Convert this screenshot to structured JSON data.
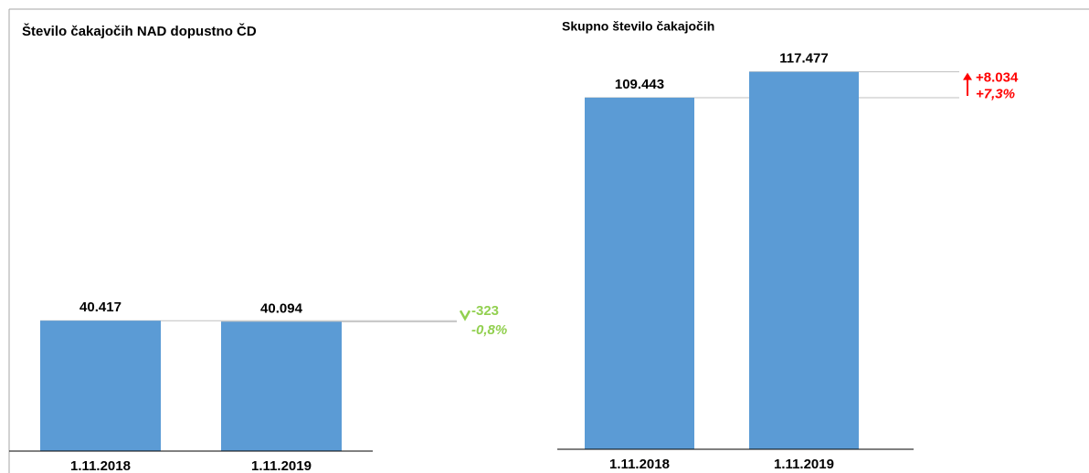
{
  "chart_data": [
    {
      "type": "bar",
      "title": "Število čakajočih NAD dopustno ČD",
      "categories": [
        "1.11.2018",
        "1.11.2019"
      ],
      "values": [
        40417,
        40094
      ],
      "value_labels": [
        "40.417",
        "40.094"
      ],
      "color": "#5b9bd5",
      "ylim": [
        0,
        137000
      ],
      "annotation": {
        "change": "-323",
        "percent": "-0,8%",
        "color": "#92d050"
      }
    },
    {
      "type": "bar",
      "title": "Skupno število čakajočih",
      "categories": [
        "1.11.2018",
        "1.11.2019"
      ],
      "values": [
        109443,
        117477
      ],
      "value_labels": [
        "109.443",
        "117.477"
      ],
      "color": "#5b9bd5",
      "ylim": [
        0,
        137000
      ],
      "annotation": {
        "change": "+8.034",
        "percent": "+7,3%",
        "color": "#ff0000"
      }
    }
  ]
}
